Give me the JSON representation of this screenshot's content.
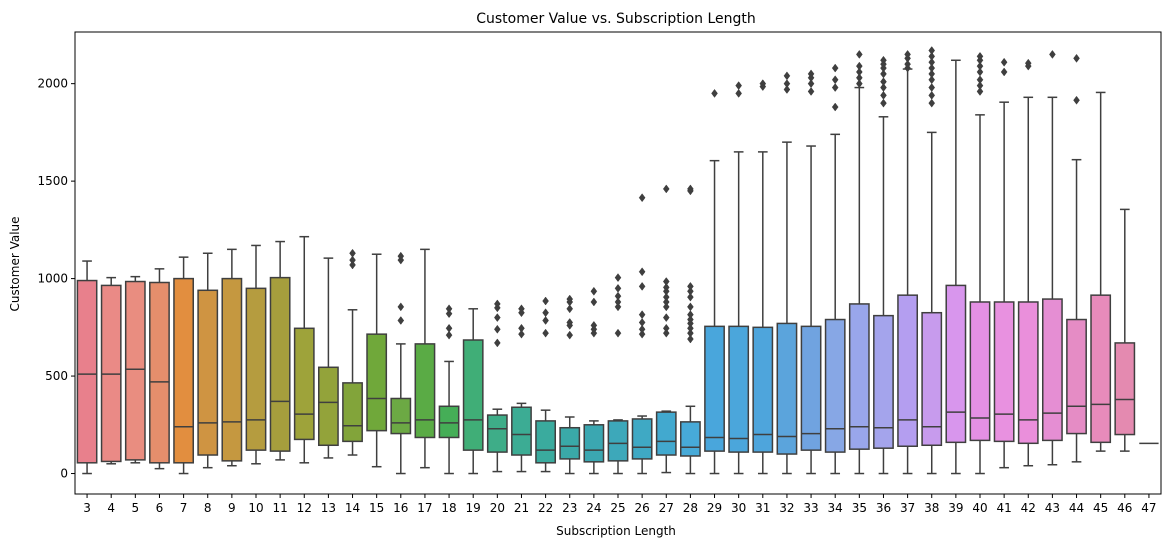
{
  "chart_data": {
    "type": "box",
    "title": "Customer Value vs. Subscription Length",
    "xlabel": "Subscription Length",
    "ylabel": "Customer Value",
    "ylim": [
      -105,
      2265
    ],
    "yticks": [
      0,
      500,
      1000,
      1500,
      2000
    ],
    "grid": false,
    "categories": [
      "3",
      "4",
      "5",
      "6",
      "7",
      "8",
      "9",
      "10",
      "11",
      "12",
      "13",
      "14",
      "15",
      "16",
      "17",
      "18",
      "19",
      "20",
      "21",
      "22",
      "23",
      "24",
      "25",
      "26",
      "27",
      "28",
      "29",
      "30",
      "31",
      "32",
      "33",
      "34",
      "35",
      "36",
      "37",
      "38",
      "39",
      "40",
      "41",
      "42",
      "43",
      "44",
      "45",
      "46",
      "47"
    ],
    "colors": [
      "#e8808c",
      "#ea8a86",
      "#e98d80",
      "#e58e6c",
      "#e28e3f",
      "#cf9442",
      "#c59840",
      "#b59c3f",
      "#a69e3d",
      "#9ea33a",
      "#93a33a",
      "#82a43a",
      "#70a83a",
      "#6ca944",
      "#5aab45",
      "#45ae57",
      "#40ae77",
      "#3ead88",
      "#3cac94",
      "#3aab9e",
      "#3aa9a8",
      "#3ba7b1",
      "#3da8ba",
      "#3fa9c4",
      "#42a9cf",
      "#47aad8",
      "#49a6dc",
      "#4ba6db",
      "#4ea5dc",
      "#5ba4dc",
      "#70a3e0",
      "#87a7e5",
      "#99a6eb",
      "#a4a4ec",
      "#b49ef0",
      "#c79bed",
      "#d896ed",
      "#e490e4",
      "#e891e0",
      "#ea8fdb",
      "#e58ed3",
      "#e58cc5",
      "#e78bbb",
      "#e48ab0",
      "#e0879e"
    ],
    "boxes": [
      {
        "x": "3",
        "whisker_low": 0,
        "q1": 55,
        "median": 510,
        "q3": 990,
        "whisker_high": 1090,
        "outliers": []
      },
      {
        "x": "4",
        "whisker_low": 50,
        "q1": 62,
        "median": 510,
        "q3": 965,
        "whisker_high": 1005,
        "outliers": []
      },
      {
        "x": "5",
        "whisker_low": 55,
        "q1": 70,
        "median": 535,
        "q3": 985,
        "whisker_high": 1010,
        "outliers": []
      },
      {
        "x": "6",
        "whisker_low": 25,
        "q1": 55,
        "median": 470,
        "q3": 980,
        "whisker_high": 1050,
        "outliers": []
      },
      {
        "x": "7",
        "whisker_low": 0,
        "q1": 55,
        "median": 240,
        "q3": 1000,
        "whisker_high": 1110,
        "outliers": []
      },
      {
        "x": "8",
        "whisker_low": 30,
        "q1": 95,
        "median": 260,
        "q3": 940,
        "whisker_high": 1130,
        "outliers": []
      },
      {
        "x": "9",
        "whisker_low": 40,
        "q1": 65,
        "median": 265,
        "q3": 1000,
        "whisker_high": 1150,
        "outliers": []
      },
      {
        "x": "10",
        "whisker_low": 50,
        "q1": 120,
        "median": 275,
        "q3": 950,
        "whisker_high": 1170,
        "outliers": []
      },
      {
        "x": "11",
        "whisker_low": 70,
        "q1": 115,
        "median": 370,
        "q3": 1005,
        "whisker_high": 1190,
        "outliers": []
      },
      {
        "x": "12",
        "whisker_low": 55,
        "q1": 175,
        "median": 305,
        "q3": 745,
        "whisker_high": 1215,
        "outliers": []
      },
      {
        "x": "13",
        "whisker_low": 80,
        "q1": 145,
        "median": 365,
        "q3": 545,
        "whisker_high": 1105,
        "outliers": []
      },
      {
        "x": "14",
        "whisker_low": 95,
        "q1": 165,
        "median": 245,
        "q3": 465,
        "whisker_high": 840,
        "outliers": [
          1070,
          1095,
          1130
        ]
      },
      {
        "x": "15",
        "whisker_low": 35,
        "q1": 220,
        "median": 385,
        "q3": 715,
        "whisker_high": 1125,
        "outliers": []
      },
      {
        "x": "16",
        "whisker_low": 0,
        "q1": 205,
        "median": 260,
        "q3": 385,
        "whisker_high": 665,
        "outliers": [
          785,
          855,
          1095,
          1115
        ]
      },
      {
        "x": "17",
        "whisker_low": 30,
        "q1": 185,
        "median": 275,
        "q3": 665,
        "whisker_high": 1150,
        "outliers": []
      },
      {
        "x": "18",
        "whisker_low": 0,
        "q1": 185,
        "median": 260,
        "q3": 345,
        "whisker_high": 575,
        "outliers": [
          710,
          745,
          820,
          845
        ]
      },
      {
        "x": "19",
        "whisker_low": 0,
        "q1": 120,
        "median": 275,
        "q3": 685,
        "whisker_high": 845,
        "outliers": []
      },
      {
        "x": "20",
        "whisker_low": 10,
        "q1": 110,
        "median": 230,
        "q3": 300,
        "whisker_high": 330,
        "outliers": [
          670,
          740,
          800,
          850,
          870
        ]
      },
      {
        "x": "21",
        "whisker_low": 10,
        "q1": 95,
        "median": 200,
        "q3": 340,
        "whisker_high": 360,
        "outliers": [
          715,
          745,
          825,
          845
        ]
      },
      {
        "x": "22",
        "whisker_low": 10,
        "q1": 55,
        "median": 120,
        "q3": 270,
        "whisker_high": 325,
        "outliers": [
          720,
          785,
          825,
          885
        ]
      },
      {
        "x": "23",
        "whisker_low": 0,
        "q1": 75,
        "median": 140,
        "q3": 235,
        "whisker_high": 290,
        "outliers": [
          710,
          760,
          775,
          845,
          880,
          895
        ]
      },
      {
        "x": "24",
        "whisker_low": 0,
        "q1": 60,
        "median": 120,
        "q3": 250,
        "whisker_high": 270,
        "outliers": [
          720,
          740,
          760,
          880,
          935
        ]
      },
      {
        "x": "25",
        "whisker_low": 0,
        "q1": 65,
        "median": 155,
        "q3": 270,
        "whisker_high": 275,
        "outliers": [
          720,
          855,
          880,
          910,
          950,
          1005
        ]
      },
      {
        "x": "26",
        "whisker_low": 0,
        "q1": 75,
        "median": 135,
        "q3": 280,
        "whisker_high": 295,
        "outliers": [
          715,
          740,
          775,
          815,
          960,
          1035,
          1415
        ]
      },
      {
        "x": "27",
        "whisker_low": 5,
        "q1": 95,
        "median": 165,
        "q3": 315,
        "whisker_high": 320,
        "outliers": [
          720,
          745,
          800,
          855,
          880,
          905,
          935,
          955,
          985,
          1460
        ]
      },
      {
        "x": "28",
        "whisker_low": 0,
        "q1": 90,
        "median": 135,
        "q3": 265,
        "whisker_high": 345,
        "outliers": [
          690,
          720,
          745,
          770,
          790,
          815,
          855,
          905,
          935,
          960,
          1450,
          1460
        ]
      },
      {
        "x": "29",
        "whisker_low": 0,
        "q1": 115,
        "median": 185,
        "q3": 755,
        "whisker_high": 1605,
        "outliers": [
          1950
        ]
      },
      {
        "x": "30",
        "whisker_low": 0,
        "q1": 110,
        "median": 180,
        "q3": 755,
        "whisker_high": 1650,
        "outliers": [
          1950,
          1990
        ]
      },
      {
        "x": "31",
        "whisker_low": 0,
        "q1": 110,
        "median": 200,
        "q3": 750,
        "whisker_high": 1650,
        "outliers": [
          1985,
          2000
        ]
      },
      {
        "x": "32",
        "whisker_low": 0,
        "q1": 100,
        "median": 190,
        "q3": 770,
        "whisker_high": 1700,
        "outliers": [
          1970,
          2000,
          2040
        ]
      },
      {
        "x": "33",
        "whisker_low": 0,
        "q1": 120,
        "median": 205,
        "q3": 755,
        "whisker_high": 1680,
        "outliers": [
          1960,
          2000,
          2030,
          2050
        ]
      },
      {
        "x": "34",
        "whisker_low": 0,
        "q1": 110,
        "median": 230,
        "q3": 790,
        "whisker_high": 1740,
        "outliers": [
          1880,
          1980,
          2020,
          2080
        ]
      },
      {
        "x": "35",
        "whisker_low": 0,
        "q1": 125,
        "median": 240,
        "q3": 870,
        "whisker_high": 1980,
        "outliers": [
          2000,
          2030,
          2060,
          2090,
          2150
        ]
      },
      {
        "x": "36",
        "whisker_low": 0,
        "q1": 130,
        "median": 235,
        "q3": 810,
        "whisker_high": 1830,
        "outliers": [
          1900,
          1940,
          1980,
          2010,
          2050,
          2080,
          2100,
          2120
        ]
      },
      {
        "x": "37",
        "whisker_low": 0,
        "q1": 140,
        "median": 275,
        "q3": 915,
        "whisker_high": 2075,
        "outliers": [
          2080,
          2100,
          2130,
          2150
        ]
      },
      {
        "x": "38",
        "whisker_low": 0,
        "q1": 145,
        "median": 240,
        "q3": 825,
        "whisker_high": 1750,
        "outliers": [
          1900,
          1940,
          1980,
          2020,
          2050,
          2080,
          2110,
          2140,
          2170
        ]
      },
      {
        "x": "39",
        "whisker_low": 0,
        "q1": 160,
        "median": 315,
        "q3": 965,
        "whisker_high": 2120,
        "outliers": []
      },
      {
        "x": "40",
        "whisker_low": 0,
        "q1": 170,
        "median": 285,
        "q3": 880,
        "whisker_high": 1840,
        "outliers": [
          1960,
          1990,
          2020,
          2060,
          2090,
          2120,
          2140
        ]
      },
      {
        "x": "41",
        "whisker_low": 30,
        "q1": 165,
        "median": 305,
        "q3": 880,
        "whisker_high": 1905,
        "outliers": [
          2060,
          2110
        ]
      },
      {
        "x": "42",
        "whisker_low": 40,
        "q1": 155,
        "median": 275,
        "q3": 880,
        "whisker_high": 1930,
        "outliers": [
          2090,
          2105
        ]
      },
      {
        "x": "43",
        "whisker_low": 45,
        "q1": 170,
        "median": 310,
        "q3": 895,
        "whisker_high": 1930,
        "outliers": [
          2150
        ]
      },
      {
        "x": "44",
        "whisker_low": 60,
        "q1": 205,
        "median": 345,
        "q3": 790,
        "whisker_high": 1610,
        "outliers": [
          1915,
          2130
        ]
      },
      {
        "x": "45",
        "whisker_low": 115,
        "q1": 160,
        "median": 355,
        "q3": 915,
        "whisker_high": 1955,
        "outliers": []
      },
      {
        "x": "46",
        "whisker_low": 115,
        "q1": 200,
        "median": 380,
        "q3": 670,
        "whisker_high": 1355,
        "outliers": []
      },
      {
        "x": "47",
        "whisker_low": 155,
        "q1": 155,
        "median": 155,
        "q3": 155,
        "whisker_high": 155,
        "outliers": []
      }
    ]
  }
}
